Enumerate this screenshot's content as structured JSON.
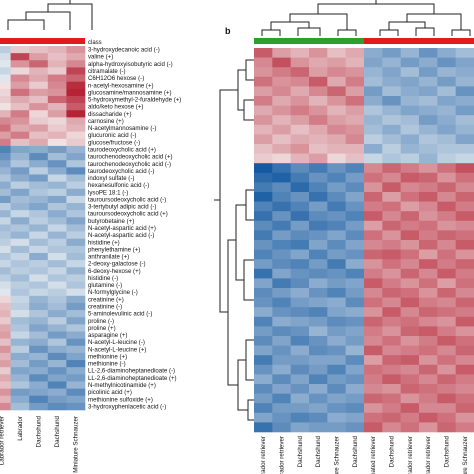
{
  "colors": {
    "class_left": "#e31a1c",
    "class_right_green": "#2ca02c",
    "class_right_red": "#e31a1c",
    "cold": "#08519c",
    "white": "#f7f7f7",
    "hot": "#b2182b",
    "dendrogram": "#222222"
  },
  "chart_data": [
    {
      "type": "heatmap",
      "panel_label": "",
      "class_label": "class",
      "columns": [
        "Labrador retriever",
        "Labrador (cropped)",
        "Dachshund",
        "Dachshund",
        "Miniature Schnauzer"
      ],
      "column_labels_visible": [
        "Labrador retriever",
        "Labrador",
        "Dachshund",
        "Dachshund",
        "Miniature Schnauzer"
      ],
      "rows": [
        "3-hydroxydecanoic acid (-)",
        "valine (+)",
        "alpha-hydroxyisobutyric acid (-)",
        "citramalate (-)",
        "C6H12O6 hexose (-)",
        "n-acetyl-hexosamine (+)",
        "glucosamine/mannosamine (+)",
        "5-hydroxymethyl-2-furaldehyde (+)",
        "aldo/keto hexose (+)",
        "dissacharide (+)",
        "carnosine (+)",
        "N-acetylmannosamine (-)",
        "glucuronic acid (-)",
        "glucose/fructose (-)",
        "taurodeoxycholic acid (+)",
        "taurochenodeoxycholic acid (+)",
        "taurochenodeoxycholic acid (-)",
        "taurodeoxycholic acid (-)",
        "indoxyl sulfate (-)",
        "hexanesulfonic acid (-)",
        "lysoPE 18:1 (-)",
        "tauroursodeoxycholic acid (-)",
        "3-tertybutyl adipic acid (-)",
        "tauroursodeoxycholic acid (+)",
        "butyrobetaine (+)",
        "N-acetyl-aspartic acid (+)",
        "N-acetyl-aspartic acid (-)",
        "histidine (+)",
        "phenylethamine (+)",
        "anthranilate (+)",
        "2-deoxy-galactose (-)",
        "6-deoxy-hexose (+)",
        "histidine (-)",
        "glutamine (-)",
        "N-formylglycine (-)",
        "creatinine (+)",
        "creatinine (-)",
        "5-aminolevulinic acid (-)",
        "proline (-)",
        "proline (+)",
        "asparagine (+)",
        "N-acetyl-L-leucine (-)",
        "N-acetyl-L-leucine (+)",
        "methionine (+)",
        "methionine (-)",
        "LL-2,6-diaminoheptanedioate (-)",
        "LL-2,6-diaminoheptanedioate (+)",
        "N-methylnicotinamide (+)",
        "picolinic acid (+)",
        "methionine sulfoxide (+)",
        "3-hydroxyphenlacetic acid (-)"
      ],
      "z": [
        [
          -0.5,
          0.4,
          0.5,
          0.6,
          0.9
        ],
        [
          -0.3,
          1.6,
          0.8,
          0.5,
          0.7
        ],
        [
          -0.2,
          0.9,
          1.3,
          0.6,
          1.0
        ],
        [
          -0.4,
          0.3,
          0.6,
          0.4,
          1.6
        ],
        [
          -0.2,
          1.0,
          0.7,
          1.1,
          1.3
        ],
        [
          0.2,
          0.8,
          0.4,
          1.0,
          1.8
        ],
        [
          0.3,
          1.2,
          0.8,
          0.9,
          1.9
        ],
        [
          0.4,
          0.7,
          0.5,
          1.3,
          1.6
        ],
        [
          0.2,
          0.5,
          0.9,
          0.6,
          1.4
        ],
        [
          0.6,
          1.1,
          0.3,
          0.8,
          1.9
        ],
        [
          1.0,
          0.9,
          0.4,
          0.3,
          0.7
        ],
        [
          1.2,
          0.7,
          0.8,
          0.4,
          0.6
        ],
        [
          0.8,
          1.1,
          0.5,
          0.6,
          0.3
        ],
        [
          1.1,
          0.5,
          0.7,
          0.2,
          0.4
        ],
        [
          -1.4,
          -1.0,
          -0.9,
          -1.1,
          -0.8
        ],
        [
          -1.2,
          -0.8,
          -1.3,
          -0.7,
          -1.0
        ],
        [
          -1.0,
          -0.6,
          -0.9,
          -1.2,
          -0.6
        ],
        [
          -0.8,
          -1.1,
          -0.5,
          -0.9,
          -1.3
        ],
        [
          -0.6,
          -0.9,
          -1.1,
          -0.4,
          -0.7
        ],
        [
          -0.9,
          -0.5,
          -0.7,
          -0.8,
          -0.5
        ],
        [
          -0.7,
          -1.0,
          -0.6,
          -0.5,
          -0.9
        ],
        [
          -1.1,
          -0.7,
          -0.8,
          -1.0,
          -0.4
        ],
        [
          -0.5,
          -0.8,
          -1.0,
          -0.6,
          -0.8
        ],
        [
          -0.8,
          -0.4,
          -0.6,
          -0.9,
          -0.6
        ],
        [
          -0.4,
          -0.9,
          -0.5,
          -0.7,
          -1.0
        ],
        [
          -0.7,
          -0.6,
          -0.8,
          -0.4,
          -0.7
        ],
        [
          -0.6,
          -0.8,
          -0.4,
          -0.8,
          -0.5
        ],
        [
          -0.5,
          -0.3,
          -0.7,
          -0.5,
          -0.9
        ],
        [
          -0.3,
          -0.7,
          -0.4,
          -0.6,
          -0.6
        ],
        [
          -0.6,
          -0.4,
          -0.9,
          -0.3,
          -0.7
        ],
        [
          -0.4,
          -0.6,
          -0.5,
          -0.7,
          -0.4
        ],
        [
          -0.7,
          -0.5,
          -0.6,
          -0.4,
          -0.8
        ],
        [
          -0.5,
          -0.7,
          -0.3,
          -0.6,
          -0.5
        ],
        [
          -0.3,
          -0.5,
          -0.6,
          -0.3,
          -0.6
        ],
        [
          -0.2,
          -0.6,
          -0.4,
          -0.5,
          -0.3
        ],
        [
          0.3,
          -0.4,
          -0.8,
          -0.6,
          -0.9
        ],
        [
          0.5,
          -0.5,
          -0.9,
          -0.7,
          -1.1
        ],
        [
          0.6,
          -0.3,
          -0.6,
          -0.9,
          -0.7
        ],
        [
          0.4,
          -0.7,
          -0.8,
          -0.5,
          -1.0
        ],
        [
          0.7,
          -0.6,
          -1.0,
          -0.8,
          -0.6
        ],
        [
          0.8,
          -0.4,
          -0.7,
          -1.1,
          -0.9
        ],
        [
          0.5,
          -0.8,
          -0.9,
          -0.6,
          -1.2
        ],
        [
          0.9,
          -0.5,
          -1.2,
          -0.9,
          -0.8
        ],
        [
          0.6,
          -0.9,
          -0.8,
          -1.3,
          -1.0
        ],
        [
          0.8,
          -0.7,
          -1.1,
          -0.8,
          -1.4
        ],
        [
          0.4,
          -1.0,
          -0.9,
          -1.2,
          -0.9
        ],
        [
          0.7,
          -0.8,
          -1.3,
          -1.0,
          -1.1
        ],
        [
          0.5,
          -0.6,
          -0.9,
          -1.4,
          -0.8
        ],
        [
          0.9,
          -1.1,
          -1.0,
          -0.9,
          -1.3
        ],
        [
          0.6,
          -0.9,
          -1.4,
          -1.1,
          -1.0
        ],
        [
          1.0,
          -0.7,
          -1.1,
          -1.3,
          -1.2
        ]
      ]
    },
    {
      "type": "heatmap",
      "panel_label": "b",
      "columns": [
        "Labrador retriever",
        "Labrador retriever",
        "Dachshund",
        "Dachshund",
        "Miniature Schnauzer",
        "Dachshund",
        "Flat coated retriever",
        "Dachshund",
        "Labrador retriever",
        "Labrador retriever",
        "Dachshund",
        "Miniature Schnauzer"
      ],
      "column_labels_visible": [
        "Labrador retriever",
        "Labrador retriever",
        "Dachshund",
        "Dachshund",
        "Miniature Schnauzer",
        "Dachshund",
        "Flat coated retriever",
        "Dachshund",
        "Labrador retriever",
        "Labrador retriever",
        "Dachshund",
        "Miniature Schnauzer"
      ],
      "class_groups": [
        "green",
        "green",
        "green",
        "green",
        "green",
        "green",
        "red",
        "red",
        "red",
        "red",
        "red",
        "red"
      ],
      "z": [
        [
          1.4,
          0.8,
          0.6,
          0.9,
          0.5,
          0.7,
          -0.9,
          -1.1,
          -0.8,
          -1.2,
          -0.9,
          -0.7
        ],
        [
          1.0,
          1.5,
          0.9,
          0.7,
          0.8,
          0.6,
          -1.0,
          -0.8,
          -1.1,
          -0.9,
          -1.2,
          -1.0
        ],
        [
          0.9,
          1.1,
          1.3,
          0.8,
          1.0,
          0.9,
          -0.8,
          -1.0,
          -0.7,
          -1.1,
          -0.8,
          -0.9
        ],
        [
          1.2,
          0.9,
          1.0,
          1.4,
          0.7,
          1.1,
          -0.7,
          -0.9,
          -1.0,
          -0.8,
          -1.1,
          -0.8
        ],
        [
          0.8,
          1.0,
          0.7,
          1.0,
          1.3,
          0.8,
          -1.1,
          -0.7,
          -0.9,
          -1.0,
          -0.7,
          -1.2
        ],
        [
          1.1,
          0.7,
          0.9,
          0.6,
          0.9,
          1.2,
          -0.9,
          -1.2,
          -0.8,
          -0.7,
          -1.0,
          -0.9
        ],
        [
          0.7,
          0.9,
          1.1,
          0.9,
          0.6,
          0.8,
          -0.6,
          -0.8,
          -1.0,
          -0.9,
          -0.8,
          -1.1
        ],
        [
          0.9,
          0.6,
          0.8,
          1.1,
          0.8,
          0.7,
          -0.8,
          -0.6,
          -0.7,
          -1.1,
          -0.9,
          -0.7
        ],
        [
          0.6,
          0.8,
          0.5,
          0.7,
          1.0,
          0.9,
          -0.7,
          -0.9,
          -0.6,
          -0.8,
          -1.0,
          -0.8
        ],
        [
          0.8,
          0.5,
          0.7,
          0.6,
          0.7,
          1.0,
          -0.5,
          -0.7,
          -0.9,
          -0.6,
          -0.7,
          -1.0
        ],
        [
          0.5,
          0.7,
          0.9,
          0.5,
          0.6,
          0.6,
          -0.9,
          -0.5,
          -0.8,
          -0.7,
          -0.6,
          -0.6
        ],
        [
          0.4,
          0.3,
          0.6,
          0.8,
          0.3,
          0.5,
          -0.4,
          -0.6,
          -0.5,
          -0.8,
          -0.5,
          -0.4
        ],
        [
          -1.9,
          -1.6,
          -1.3,
          -1.5,
          -1.2,
          -1.4,
          1.0,
          1.3,
          1.1,
          0.9,
          1.2,
          1.5
        ],
        [
          -1.7,
          -1.8,
          -1.5,
          -1.2,
          -1.4,
          -1.1,
          1.2,
          1.0,
          1.4,
          1.3,
          0.9,
          1.2
        ],
        [
          -1.5,
          -1.3,
          -1.7,
          -1.4,
          -1.1,
          -1.3,
          0.9,
          1.4,
          1.0,
          1.1,
          1.3,
          1.0
        ],
        [
          -1.8,
          -1.4,
          -1.2,
          -1.6,
          -1.3,
          -1.0,
          1.3,
          0.8,
          1.2,
          1.4,
          1.0,
          1.3
        ],
        [
          -1.4,
          -1.6,
          -1.4,
          -1.1,
          -1.5,
          -1.2,
          1.1,
          1.2,
          0.8,
          1.0,
          1.4,
          1.1
        ],
        [
          -1.6,
          -1.2,
          -1.6,
          -1.3,
          -1.2,
          -1.4,
          1.4,
          1.0,
          1.3,
          0.9,
          1.1,
          1.4
        ],
        [
          -1.3,
          -1.5,
          -1.1,
          -1.5,
          -1.4,
          -1.1,
          0.8,
          1.3,
          1.1,
          1.2,
          0.9,
          1.0
        ],
        [
          -1.5,
          -1.1,
          -1.3,
          -1.2,
          -1.0,
          -1.3,
          1.2,
          0.9,
          1.4,
          1.1,
          1.3,
          1.2
        ],
        [
          -1.2,
          -1.4,
          -1.5,
          -1.0,
          -1.3,
          -1.0,
          1.0,
          1.1,
          0.9,
          1.3,
          1.0,
          1.4
        ],
        [
          -1.4,
          -1.2,
          -1.0,
          -1.4,
          -1.1,
          -1.2,
          1.3,
          1.4,
          1.2,
          0.8,
          1.2,
          0.9
        ],
        [
          -1.1,
          -1.3,
          -1.4,
          -1.1,
          -1.5,
          -0.9,
          0.9,
          1.2,
          1.0,
          1.4,
          1.1,
          1.3
        ],
        [
          -1.6,
          -1.0,
          -1.2,
          -1.3,
          -1.2,
          -1.4,
          1.1,
          0.9,
          1.3,
          1.0,
          1.4,
          1.1
        ],
        [
          -1.0,
          -1.5,
          -1.3,
          -0.9,
          -1.1,
          -1.0,
          1.4,
          1.1,
          0.9,
          1.2,
          0.8,
          1.2
        ],
        [
          -1.3,
          -1.1,
          -0.9,
          -1.2,
          -1.4,
          -1.1,
          1.0,
          1.3,
          1.2,
          0.9,
          1.3,
          1.0
        ],
        [
          -1.2,
          -1.4,
          -1.1,
          -1.0,
          -0.9,
          -1.3,
          1.2,
          1.0,
          1.4,
          1.1,
          1.0,
          1.3
        ],
        [
          -0.9,
          -1.2,
          -1.3,
          -1.4,
          -1.0,
          -0.9,
          0.9,
          1.4,
          1.0,
          1.3,
          1.2,
          1.1
        ],
        [
          -1.4,
          -0.9,
          -1.0,
          -1.1,
          -1.3,
          -1.2,
          1.3,
          1.1,
          1.2,
          1.0,
          0.9,
          1.4
        ],
        [
          -1.1,
          -1.3,
          -1.2,
          -0.8,
          -1.1,
          -1.0,
          1.1,
          0.9,
          1.3,
          1.4,
          1.1,
          0.9
        ],
        [
          -1.3,
          -1.0,
          -1.4,
          -1.2,
          -0.9,
          -1.1,
          1.0,
          1.2,
          0.9,
          1.1,
          1.4,
          1.2
        ],
        [
          -1.0,
          -1.2,
          -0.9,
          -1.3,
          -1.2,
          -0.8,
          1.4,
          1.0,
          1.1,
          1.2,
          1.0,
          1.3
        ],
        [
          -1.5,
          -1.1,
          -1.1,
          -1.0,
          -1.0,
          -1.3,
          0.8,
          1.3,
          1.4,
          0.9,
          1.2,
          1.0
        ],
        [
          -1.2,
          -0.9,
          -1.3,
          -1.1,
          -1.4,
          -1.0,
          1.2,
          1.1,
          1.0,
          1.3,
          0.9,
          1.4
        ],
        [
          -0.9,
          -1.3,
          -1.0,
          -1.4,
          -1.1,
          -1.2,
          1.1,
          1.4,
          1.2,
          1.0,
          1.3,
          1.1
        ],
        [
          -1.3,
          -1.0,
          -1.2,
          -0.9,
          -1.3,
          -0.9,
          1.0,
          0.9,
          1.3,
          1.2,
          1.1,
          1.0
        ],
        [
          -1.1,
          -1.4,
          -0.9,
          -1.2,
          -1.0,
          -1.1,
          1.3,
          1.2,
          0.9,
          1.1,
          1.4,
          1.2
        ],
        [
          -1.4,
          -1.1,
          -1.1,
          -1.0,
          -1.2,
          -1.3,
          0.9,
          1.1,
          1.4,
          1.0,
          1.0,
          1.3
        ],
        [
          -1.0,
          -1.2,
          -1.4,
          -1.3,
          -0.9,
          -1.0,
          1.2,
          1.3,
          1.1,
          1.4,
          1.2,
          0.9
        ],
        [
          -1.6,
          -1.3,
          -1.0,
          -1.1,
          -1.1,
          -1.2,
          1.4,
          1.0,
          1.2,
          0.9,
          1.3,
          1.1
        ]
      ]
    }
  ]
}
